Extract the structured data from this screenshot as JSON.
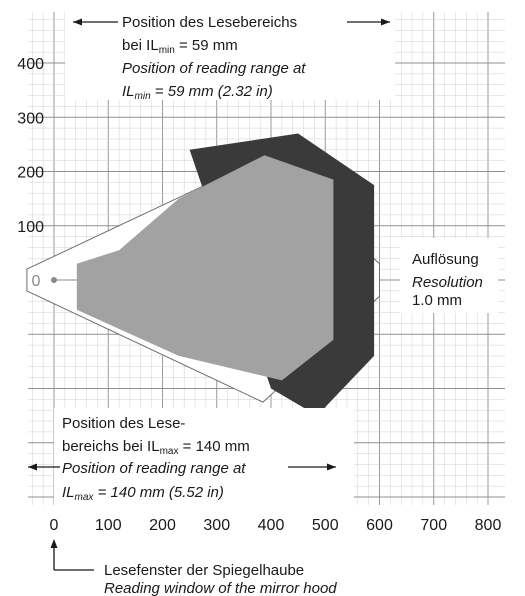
{
  "chart_data": {
    "type": "area",
    "xlim": [
      0,
      800
    ],
    "ylim": [
      -300,
      400
    ],
    "x_ticks": [
      "0",
      "100",
      "200",
      "300",
      "400",
      "500",
      "600",
      "700",
      "800"
    ],
    "y_ticks": [
      "400",
      "300",
      "200",
      "100"
    ],
    "origin_label": "0",
    "grid": true,
    "series": [
      {
        "role": "reading-range-outline",
        "points": [
          [
            -50,
            20
          ],
          [
            385,
            225
          ],
          [
            600,
            30
          ],
          [
            600,
            -30
          ],
          [
            385,
            -225
          ],
          [
            -50,
            -20
          ]
        ]
      },
      {
        "role": "reading-range-dark",
        "points": [
          [
            250,
            240
          ],
          [
            450,
            270
          ],
          [
            590,
            175
          ],
          [
            590,
            -140
          ],
          [
            485,
            -250
          ],
          [
            400,
            -200
          ]
        ]
      },
      {
        "role": "reading-range-gray",
        "points": [
          [
            42,
            30
          ],
          [
            120,
            55
          ],
          [
            230,
            150
          ],
          [
            388,
            230
          ],
          [
            515,
            185
          ],
          [
            515,
            -110
          ],
          [
            420,
            -185
          ],
          [
            230,
            -140
          ],
          [
            42,
            -55
          ]
        ]
      }
    ],
    "annotations": {
      "top": {
        "line1": "Position des Lesebereichs",
        "line2_pre": "bei IL",
        "line2_sub": "min",
        "line2_post": " = 59 mm",
        "line3": "Position of reading range at",
        "line4_pre": "IL",
        "line4_sub": "min",
        "line4_post": " = 59 mm (2.32 in)"
      },
      "bottom": {
        "line1": "Position des Lese-",
        "line2_pre": "bereichs bei IL",
        "line2_sub": "max",
        "line2_post": " = 140 mm",
        "line3": "Position of reading range at",
        "line4_pre": "IL",
        "line4_sub": "max",
        "line4_post": " = 140 mm (5.52 in)"
      },
      "resolution": {
        "line1": "Auflösung",
        "line2": "Resolution",
        "line3": "1.0 mm"
      },
      "window": {
        "line1": "Lesefenster der Spiegelhaube",
        "line2": "Reading window of the mirror hood"
      }
    },
    "colors": {
      "gray_area": "#a2a2a2",
      "dark_area": "#3a3a3a",
      "outline": "#6e6e6e",
      "grid_fine": "#cfcfcf",
      "grid_major": "#8f8f8f",
      "origin_dot": "#8a8a8a"
    }
  }
}
